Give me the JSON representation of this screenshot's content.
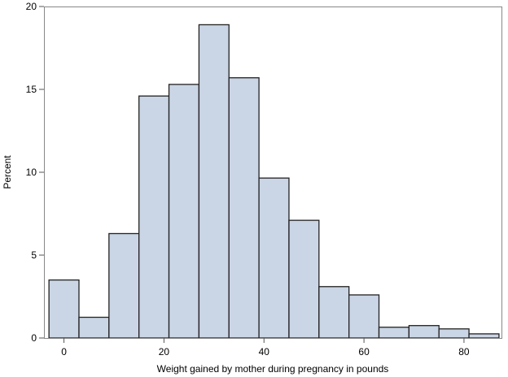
{
  "chart_data": {
    "type": "histogram",
    "xlabel": "Weight gained by mother during pregnancy in pounds",
    "ylabel": "Percent",
    "xlim": [
      -4,
      87.5
    ],
    "ylim": [
      0,
      20
    ],
    "xticks": [
      0,
      20,
      40,
      60,
      80
    ],
    "yticks": [
      0,
      5,
      10,
      15,
      20
    ],
    "grid": false,
    "bar_color": "#cad5e5",
    "edge_color": "#222222",
    "bins": [
      {
        "x0": -3.0,
        "x1": 3.0,
        "value": 3.5
      },
      {
        "x0": 3.0,
        "x1": 9.0,
        "value": 1.25
      },
      {
        "x0": 9.0,
        "x1": 15.0,
        "value": 6.3
      },
      {
        "x0": 15.0,
        "x1": 21.0,
        "value": 14.6
      },
      {
        "x0": 21.0,
        "x1": 27.0,
        "value": 15.3
      },
      {
        "x0": 27.0,
        "x1": 33.0,
        "value": 18.9
      },
      {
        "x0": 33.0,
        "x1": 39.0,
        "value": 15.7
      },
      {
        "x0": 39.0,
        "x1": 45.0,
        "value": 9.65
      },
      {
        "x0": 45.0,
        "x1": 51.0,
        "value": 7.1
      },
      {
        "x0": 51.0,
        "x1": 57.0,
        "value": 3.1
      },
      {
        "x0": 57.0,
        "x1": 63.0,
        "value": 2.6
      },
      {
        "x0": 63.0,
        "x1": 69.0,
        "value": 0.65
      },
      {
        "x0": 69.0,
        "x1": 75.0,
        "value": 0.75
      },
      {
        "x0": 75.0,
        "x1": 81.0,
        "value": 0.55
      },
      {
        "x0": 81.0,
        "x1": 87.0,
        "value": 0.25
      }
    ]
  }
}
